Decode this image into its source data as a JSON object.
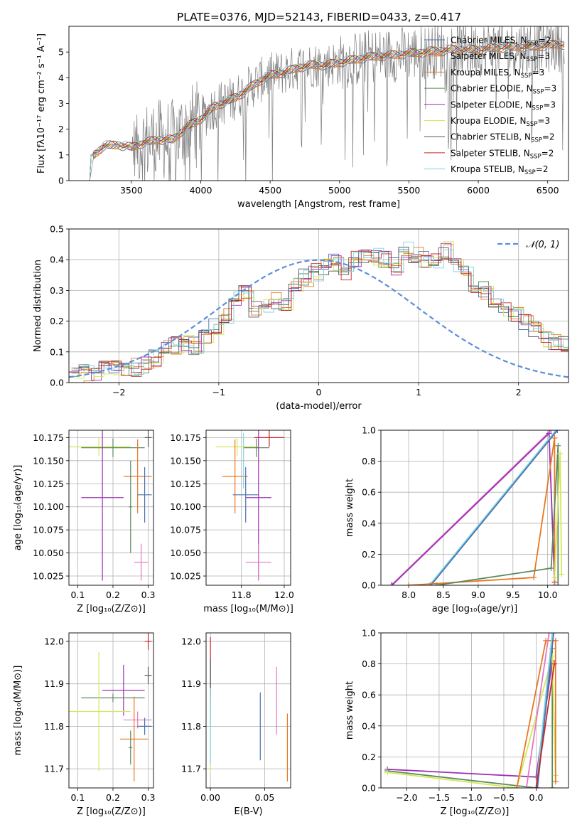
{
  "figure_title": "PLATE=0376, MJD=52143, FIBERID=0433, z=0.417",
  "colors": {
    "chabrier_miles": "#4c72b0",
    "salpeter_miles": "#e87722",
    "kroupa_miles": "#e87722",
    "chabrier_elodie": "#5b8a5e",
    "salpeter_elodie": "#9b30b5",
    "kroupa_elodie": "#d4e857",
    "chabrier_stelib": "#555555",
    "salpeter_stelib": "#c62828",
    "kroupa_stelib": "#7fd3e0",
    "normal": "#5b8fd9",
    "pink": "#e377c2",
    "data": "#7f7f7f"
  },
  "chart_data": [
    {
      "type": "line",
      "panel": "spectrum",
      "title": "PLATE=0376, MJD=52143, FIBERID=0433, z=0.417",
      "xlabel": "wavelength [Angstrom, rest frame]",
      "ylabel": "Flux [fλ10⁻¹⁷ erg cm⁻² s⁻¹ A⁻¹]",
      "xlim": [
        3050,
        6650
      ],
      "ylim": [
        0,
        6
      ],
      "xticks": [
        3500,
        4000,
        4500,
        5000,
        5500,
        6000,
        6500
      ],
      "yticks": [
        0,
        1,
        2,
        3,
        4,
        5
      ],
      "grid": false,
      "legend_position": "top-right",
      "legend": [
        {
          "label": "Chabrier MILES, N",
          "sub": "SSP",
          "suffix": "=2",
          "color_key": "chabrier_miles"
        },
        {
          "label": "Salpeter MILES, N",
          "sub": "SSP",
          "suffix": "=3",
          "color_key": "salpeter_miles"
        },
        {
          "label": "Kroupa MILES, N",
          "sub": "SSP",
          "suffix": "=3",
          "color_key": "kroupa_miles"
        },
        {
          "label": "Chabrier ELODIE, N",
          "sub": "SSP",
          "suffix": "=3",
          "color_key": "chabrier_elodie"
        },
        {
          "label": "Salpeter ELODIE, N",
          "sub": "SSP",
          "suffix": "=3",
          "color_key": "salpeter_elodie"
        },
        {
          "label": "Kroupa ELODIE, N",
          "sub": "SSP",
          "suffix": "=3",
          "color_key": "kroupa_elodie"
        },
        {
          "label": "Chabrier STELIB, N",
          "sub": "SSP",
          "suffix": "=2",
          "color_key": "chabrier_stelib"
        },
        {
          "label": "Salpeter STELIB, N",
          "sub": "SSP",
          "suffix": "=2",
          "color_key": "salpeter_stelib"
        },
        {
          "label": "Kroupa STELIB, N",
          "sub": "SSP",
          "suffix": "=2",
          "color_key": "kroupa_stelib"
        }
      ],
      "continuum_x": [
        3200,
        3230,
        3300,
        3400,
        3500,
        3600,
        3700,
        3800,
        3900,
        4000,
        4100,
        4200,
        4300,
        4400,
        4500,
        4600,
        4700,
        4800,
        4900,
        5000,
        5200,
        5400,
        5600,
        5800,
        6000,
        6200,
        6400,
        6550
      ],
      "continuum_y": [
        0,
        1.0,
        1.35,
        1.4,
        1.3,
        1.5,
        1.6,
        1.6,
        2.1,
        2.4,
        2.9,
        3.1,
        3.4,
        3.8,
        4.1,
        4.2,
        4.4,
        4.5,
        4.5,
        4.6,
        4.8,
        4.9,
        5.0,
        5.1,
        5.1,
        5.2,
        5.2,
        5.3
      ]
    },
    {
      "type": "line",
      "panel": "residual_histogram",
      "xlabel": "(data-model)/error",
      "ylabel": "Normed distribution",
      "xlim": [
        -2.5,
        2.5
      ],
      "ylim": [
        0,
        0.5
      ],
      "xticks": [
        -2,
        -1,
        0,
        1,
        2
      ],
      "yticks": [
        0.0,
        0.1,
        0.2,
        0.3,
        0.4,
        0.5
      ],
      "grid": true,
      "legend_position": "top-right",
      "legend": [
        {
          "label": "𝒩(0, 1)",
          "color_key": "normal"
        }
      ],
      "bin_edges_start": -2.5,
      "bin_width": 0.1,
      "base_values": [
        0.02,
        0.03,
        0.03,
        0.04,
        0.05,
        0.05,
        0.05,
        0.06,
        0.08,
        0.11,
        0.12,
        0.13,
        0.12,
        0.15,
        0.18,
        0.22,
        0.28,
        0.3,
        0.24,
        0.25,
        0.27,
        0.26,
        0.32,
        0.34,
        0.36,
        0.38,
        0.39,
        0.36,
        0.4,
        0.41,
        0.41,
        0.4,
        0.38,
        0.43,
        0.42,
        0.4,
        0.39,
        0.43,
        0.38,
        0.35,
        0.31,
        0.3,
        0.27,
        0.24,
        0.22,
        0.2,
        0.17,
        0.14,
        0.13,
        0.12,
        0.1,
        0.14,
        0.13,
        0.07,
        0.08,
        0.13,
        0.06,
        0.05,
        0.04,
        0.05,
        0.04,
        0.03,
        0.02
      ],
      "normal_label": "𝒩(0, 1)"
    },
    {
      "type": "scatter",
      "panel": "age_vs_Z",
      "xlabel": "Z [log₁₀(Z/Z⊙)]",
      "ylabel": "age  [log₁₀(age/yr)]",
      "xlim": [
        0.075,
        0.315
      ],
      "ylim": [
        10.015,
        10.183
      ],
      "xticks": [
        0.1,
        0.2,
        0.3
      ],
      "yticks": [
        10.025,
        10.05,
        10.075,
        10.1,
        10.125,
        10.15,
        10.175
      ],
      "grid": true,
      "points": [
        {
          "x": 0.3,
          "y": 10.175,
          "xerr": 0.01,
          "yerr": 0.01,
          "color_key": "chabrier_stelib"
        },
        {
          "x": 0.16,
          "y": 10.165,
          "xerr": 0.09,
          "yerr": 0.01,
          "color_key": "kroupa_elodie"
        },
        {
          "x": 0.2,
          "y": 10.164,
          "xerr": 0.09,
          "yerr": 0.01,
          "color_key": "chabrier_elodie"
        },
        {
          "x": 0.27,
          "y": 10.133,
          "xerr": 0.04,
          "yerr": 0.04,
          "color_key": "salpeter_miles"
        },
        {
          "x": 0.29,
          "y": 10.113,
          "xerr": 0.02,
          "yerr": 0.03,
          "color_key": "chabrier_miles"
        },
        {
          "x": 0.17,
          "y": 10.11,
          "xerr": 0.06,
          "yerr": 0.09,
          "color_key": "salpeter_elodie"
        },
        {
          "x": 0.28,
          "y": 10.04,
          "xerr": 0.02,
          "yerr": 0.02,
          "color_key": "pink"
        },
        {
          "x": 0.25,
          "y": 10.1,
          "xerr": 0.005,
          "yerr": 0.05,
          "color_key": "chabrier_elodie"
        }
      ]
    },
    {
      "type": "scatter",
      "panel": "age_vs_mass",
      "xlabel": "mass [log₁₀(M/M⊙)]",
      "ylabel": "",
      "xlim": [
        11.635,
        12.03
      ],
      "ylim": [
        10.015,
        10.183
      ],
      "xticks": [
        11.8,
        12.0
      ],
      "yticks": [
        10.025,
        10.05,
        10.075,
        10.1,
        10.125,
        10.15,
        10.175
      ],
      "grid": true,
      "points": [
        {
          "x": 11.93,
          "y": 10.175,
          "xerr": 0.07,
          "yerr": 0.01,
          "color_key": "salpeter_stelib"
        },
        {
          "x": 11.78,
          "y": 10.165,
          "xerr": 0.1,
          "yerr": 0.01,
          "color_key": "kroupa_elodie"
        },
        {
          "x": 11.87,
          "y": 10.164,
          "xerr": 0.06,
          "yerr": 0.01,
          "color_key": "chabrier_elodie"
        },
        {
          "x": 11.77,
          "y": 10.133,
          "xerr": 0.06,
          "yerr": 0.04,
          "color_key": "salpeter_miles"
        },
        {
          "x": 11.82,
          "y": 10.113,
          "xerr": 0.06,
          "yerr": 0.03,
          "color_key": "chabrier_miles"
        },
        {
          "x": 11.88,
          "y": 10.11,
          "xerr": 0.06,
          "yerr": 0.09,
          "color_key": "salpeter_elodie"
        },
        {
          "x": 11.88,
          "y": 10.04,
          "xerr": 0.06,
          "yerr": 0.02,
          "color_key": "pink"
        },
        {
          "x": 11.81,
          "y": 10.15,
          "xerr": 0.005,
          "yerr": 0.03,
          "color_key": "kroupa_stelib"
        }
      ]
    },
    {
      "type": "line",
      "panel": "weight_vs_age",
      "xlabel": "age  [log₁₀(age/yr)]",
      "ylabel": "mass weight",
      "xlim": [
        7.6,
        10.3
      ],
      "ylim": [
        0,
        1
      ],
      "xticks": [
        8.0,
        8.5,
        9.0,
        9.5,
        10.0
      ],
      "yticks": [
        0.0,
        0.2,
        0.4,
        0.6,
        0.8,
        1.0
      ],
      "grid": true,
      "series": [
        {
          "color_key": "pink",
          "x": [
            7.75,
            10.05
          ],
          "y": [
            0.0,
            1.0
          ]
        },
        {
          "color_key": "salpeter_elodie",
          "x": [
            7.76,
            10.02,
            10.1
          ],
          "y": [
            0.0,
            0.98,
            0.02
          ]
        },
        {
          "color_key": "kroupa_stelib",
          "x": [
            8.3,
            10.12
          ],
          "y": [
            0.0,
            1.0
          ]
        },
        {
          "color_key": "chabrier_miles",
          "x": [
            8.32,
            10.14
          ],
          "y": [
            0.0,
            1.0
          ]
        },
        {
          "color_key": "salpeter_miles",
          "x": [
            8.0,
            9.8,
            10.1,
            10.1
          ],
          "y": [
            0.0,
            0.05,
            0.95,
            0.0
          ]
        },
        {
          "color_key": "chabrier_elodie",
          "x": [
            8.4,
            10.05,
            10.15,
            10.15
          ],
          "y": [
            0.0,
            0.11,
            0.9,
            0.0
          ]
        },
        {
          "color_key": "kroupa_elodie",
          "x": [
            10.1,
            10.18,
            10.2
          ],
          "y": [
            0.05,
            0.85,
            0.07
          ]
        }
      ]
    },
    {
      "type": "scatter",
      "panel": "mass_vs_Z",
      "xlabel": "Z [log₁₀(Z/Z⊙)]",
      "ylabel": "mass [log₁₀(M/M⊙)]",
      "xlim": [
        0.075,
        0.315
      ],
      "ylim": [
        11.655,
        12.02
      ],
      "xticks": [
        0.1,
        0.2,
        0.3
      ],
      "yticks": [
        11.7,
        11.8,
        11.9,
        12.0
      ],
      "grid": true,
      "points": [
        {
          "x": 0.3,
          "y": 12.0,
          "xerr": 0.01,
          "yerr": 0.02,
          "color_key": "salpeter_stelib"
        },
        {
          "x": 0.3,
          "y": 11.92,
          "xerr": 0.01,
          "yerr": 0.02,
          "color_key": "chabrier_stelib"
        },
        {
          "x": 0.23,
          "y": 11.885,
          "xerr": 0.06,
          "yerr": 0.06,
          "color_key": "salpeter_elodie"
        },
        {
          "x": 0.2,
          "y": 11.867,
          "xerr": 0.09,
          "yerr": 0.01,
          "color_key": "chabrier_elodie"
        },
        {
          "x": 0.16,
          "y": 11.835,
          "xerr": 0.09,
          "yerr": 0.14,
          "color_key": "kroupa_elodie"
        },
        {
          "x": 0.27,
          "y": 11.815,
          "xerr": 0.04,
          "yerr": 0.02,
          "color_key": "pink"
        },
        {
          "x": 0.26,
          "y": 11.77,
          "xerr": 0.04,
          "yerr": 0.1,
          "color_key": "salpeter_miles"
        },
        {
          "x": 0.25,
          "y": 11.75,
          "xerr": 0.005,
          "yerr": 0.04,
          "color_key": "chabrier_elodie"
        },
        {
          "x": 0.29,
          "y": 11.8,
          "xerr": 0.02,
          "yerr": 0.02,
          "color_key": "chabrier_miles"
        }
      ]
    },
    {
      "type": "scatter",
      "panel": "mass_vs_ebv",
      "xlabel": "E(B-V)",
      "ylabel": "",
      "xlim": [
        -0.004,
        0.074
      ],
      "ylim": [
        11.655,
        12.02
      ],
      "xticks": [
        0.0,
        0.05
      ],
      "yticks": [
        11.7,
        11.8,
        11.9,
        12.0
      ],
      "grid": true,
      "points": [
        {
          "x": 0.0,
          "y": 11.93,
          "yerr": 0.08,
          "color_key": "salpeter_stelib"
        },
        {
          "x": 0.0,
          "y": 11.88,
          "yerr": 0.08,
          "color_key": "chabrier_stelib"
        },
        {
          "x": 0.0,
          "y": 11.78,
          "yerr": 0.09,
          "color_key": "kroupa_elodie"
        },
        {
          "x": 0.0,
          "y": 11.8,
          "yerr": 0.09,
          "color_key": "kroupa_stelib"
        },
        {
          "x": 0.046,
          "y": 11.8,
          "yerr": 0.08,
          "color_key": "chabrier_miles"
        },
        {
          "x": 0.061,
          "y": 11.86,
          "yerr": 0.08,
          "color_key": "pink"
        },
        {
          "x": 0.071,
          "y": 11.75,
          "yerr": 0.08,
          "color_key": "salpeter_miles"
        }
      ]
    },
    {
      "type": "line",
      "panel": "weight_vs_Z",
      "xlabel": "Z [log₁₀(Z/Z⊙)]",
      "ylabel": "mass weight",
      "xlim": [
        -2.4,
        0.5
      ],
      "ylim": [
        0,
        1
      ],
      "xticks": [
        -2.0,
        -1.5,
        -1.0,
        -0.5,
        0.0
      ],
      "yticks": [
        0.0,
        0.2,
        0.4,
        0.6,
        0.8,
        1.0
      ],
      "grid": true,
      "series": [
        {
          "color_key": "salpeter_elodie",
          "x": [
            -2.3,
            0.0,
            0.25
          ],
          "y": [
            0.12,
            0.07,
            0.82
          ]
        },
        {
          "color_key": "chabrier_elodie",
          "x": [
            -2.3,
            0.0,
            0.25,
            0.25
          ],
          "y": [
            0.11,
            0.0,
            0.9,
            0.0
          ]
        },
        {
          "color_key": "kroupa_elodie",
          "x": [
            -2.3,
            -0.3,
            0.25,
            0.3
          ],
          "y": [
            0.1,
            0.0,
            0.85,
            0.08
          ]
        },
        {
          "color_key": "salpeter_miles",
          "x": [
            -0.3,
            0.15,
            0.3,
            0.3
          ],
          "y": [
            0.0,
            0.95,
            0.95,
            0.04
          ]
        },
        {
          "color_key": "pink",
          "x": [
            -0.15,
            0.2
          ],
          "y": [
            0.0,
            1.0
          ]
        },
        {
          "color_key": "kroupa_stelib",
          "x": [
            0.0,
            0.25
          ],
          "y": [
            0.0,
            1.0
          ]
        },
        {
          "color_key": "chabrier_miles",
          "x": [
            0.02,
            0.27
          ],
          "y": [
            0.0,
            1.0
          ]
        },
        {
          "color_key": "salpeter_stelib",
          "x": [
            0.0,
            0.28
          ],
          "y": [
            0.0,
            0.8
          ]
        }
      ]
    }
  ]
}
